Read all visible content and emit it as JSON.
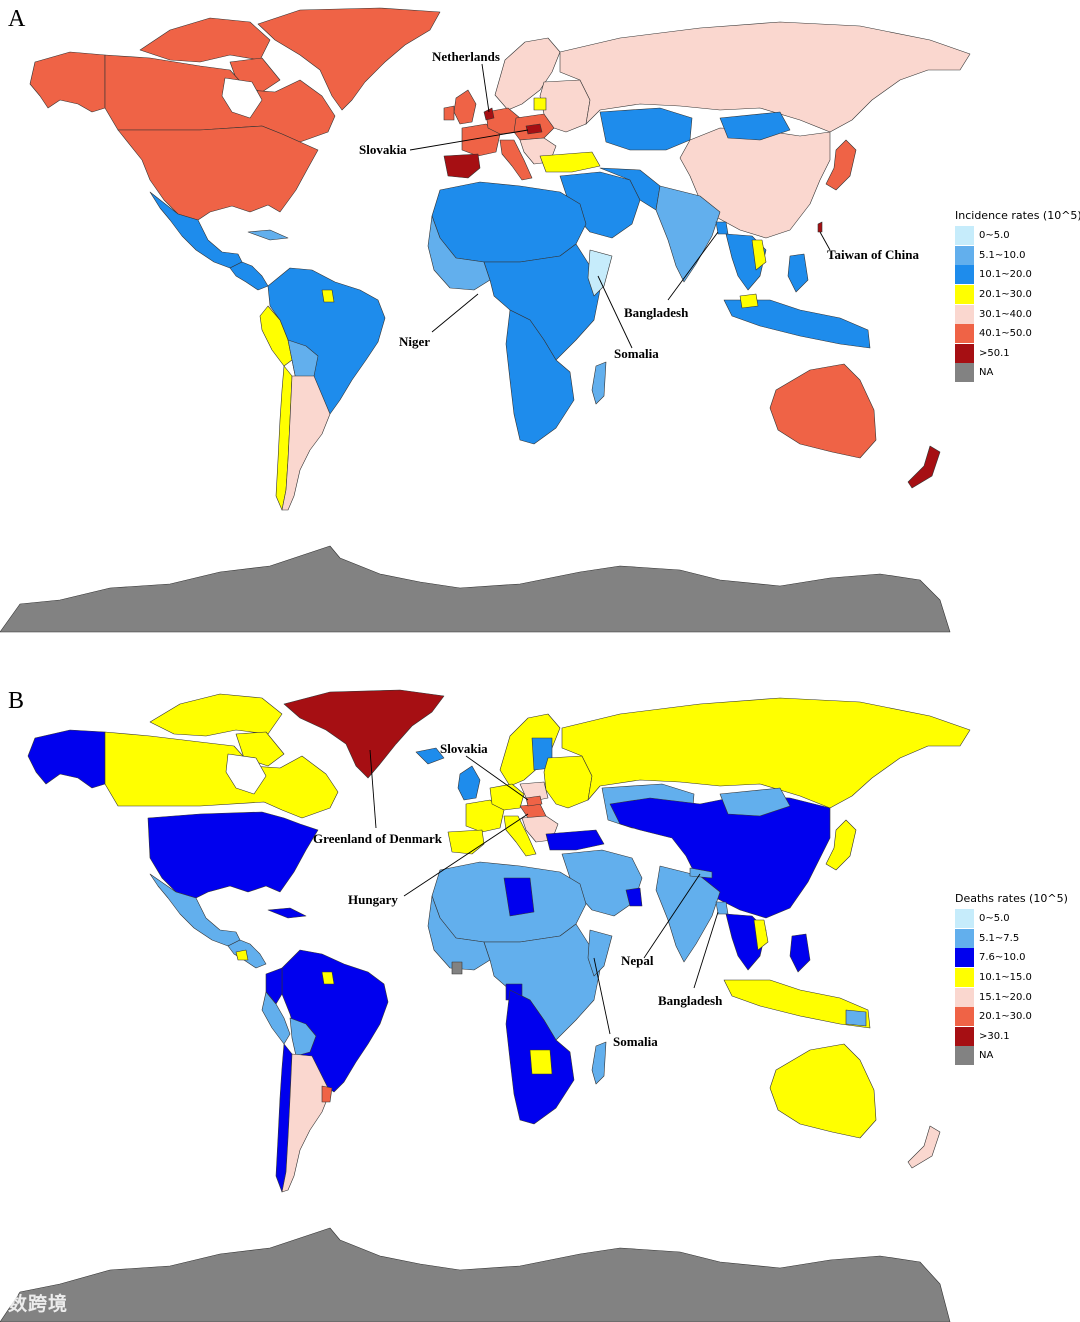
{
  "colors": {
    "c0": "#c6ecfb",
    "c1": "#62afed",
    "c2": "#1e8cec",
    "c3": "#ffff00",
    "c4": "#fad7cf",
    "c5": "#ef6346",
    "c6": "#a60f13",
    "na": "#828282",
    "blueDark": "#0000ee"
  },
  "panel_a": {
    "letter": "A",
    "legend": {
      "title": "Incidence rates (10^5)",
      "items": [
        {
          "label": "0~5.0",
          "color": "#c6ecfb"
        },
        {
          "label": "5.1~10.0",
          "color": "#62afed"
        },
        {
          "label": "10.1~20.0",
          "color": "#1e8cec"
        },
        {
          "label": "20.1~30.0",
          "color": "#ffff00"
        },
        {
          "label": "30.1~40.0",
          "color": "#fad7cf"
        },
        {
          "label": "40.1~50.0",
          "color": "#ef6346"
        },
        {
          "label": ">50.1",
          "color": "#a60f13"
        },
        {
          "label": "NA",
          "color": "#828282"
        }
      ]
    },
    "callouts": {
      "netherlands": "Netherlands",
      "slovakia": "Slovakia",
      "taiwan": "Taiwan of China",
      "bangladesh": "Bangladesh",
      "niger": "Niger",
      "somalia": "Somalia"
    }
  },
  "panel_b": {
    "letter": "B",
    "legend": {
      "title": "Deaths rates (10^5)",
      "items": [
        {
          "label": "0~5.0",
          "color": "#c6ecfb"
        },
        {
          "label": "5.1~7.5",
          "color": "#62afed"
        },
        {
          "label": "7.6~10.0",
          "color": "#0000ee"
        },
        {
          "label": "10.1~15.0",
          "color": "#ffff00"
        },
        {
          "label": "15.1~20.0",
          "color": "#fad7cf"
        },
        {
          "label": "20.1~30.0",
          "color": "#ef6346"
        },
        {
          "label": ">30.1",
          "color": "#a60f13"
        },
        {
          "label": "NA",
          "color": "#828282"
        }
      ]
    },
    "callouts": {
      "slovakia": "Slovakia",
      "greenland": "Greenland of Denmark",
      "hungary": "Hungary",
      "nepal": "Nepal",
      "bangladesh": "Bangladesh",
      "somalia": "Somalia"
    }
  },
  "watermark": "数跨境"
}
